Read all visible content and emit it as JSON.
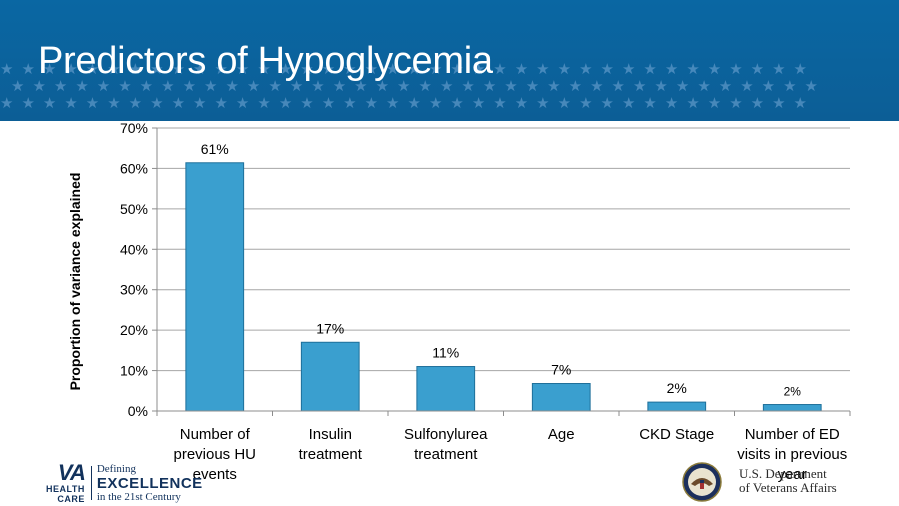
{
  "slide": {
    "title": "Predictors of Hypoglycemia"
  },
  "chart_data": {
    "type": "bar",
    "categories": [
      [
        "Number of",
        "previous HU",
        "events"
      ],
      [
        "Insulin",
        "treatment"
      ],
      [
        "Sulfonylurea",
        "treatment"
      ],
      [
        "Age"
      ],
      [
        "CKD Stage"
      ],
      [
        "Number of ED",
        "visits in previous",
        "year"
      ]
    ],
    "values": [
      0.614,
      0.17,
      0.11,
      0.068,
      0.022,
      0.016
    ],
    "data_labels": [
      "61%",
      "17%",
      "11%",
      "7%",
      "2%",
      "2%"
    ],
    "ylabel": "Proportion of variance explained",
    "ylim": [
      0,
      0.7
    ],
    "yticks": [
      {
        "value": 0,
        "label": "0%"
      },
      {
        "value": 0.1,
        "label": "10%"
      },
      {
        "value": 0.2,
        "label": "20%"
      },
      {
        "value": 0.3,
        "label": "30%"
      },
      {
        "value": 0.4,
        "label": "40%"
      },
      {
        "value": 0.5,
        "label": "50%"
      },
      {
        "value": 0.6,
        "label": "60%"
      },
      {
        "value": 0.7,
        "label": "70%"
      }
    ],
    "grid": true,
    "bar_color": "#3a9fcf",
    "bar_edge_color": "#1e6f9a"
  },
  "footer": {
    "va_logo": {
      "letters": "VA",
      "line2": "HEALTH",
      "line3": "CARE"
    },
    "tagline": {
      "line1": "Defining",
      "line2": "EXCELLENCE",
      "line3": "in the 21st Century"
    },
    "seal_icon": "va-seal-icon",
    "department": {
      "line1": "U.S. Department",
      "line2": "of Veterans Affairs"
    }
  },
  "colors": {
    "banner": "#0a67a3",
    "navy": "#12325c"
  }
}
